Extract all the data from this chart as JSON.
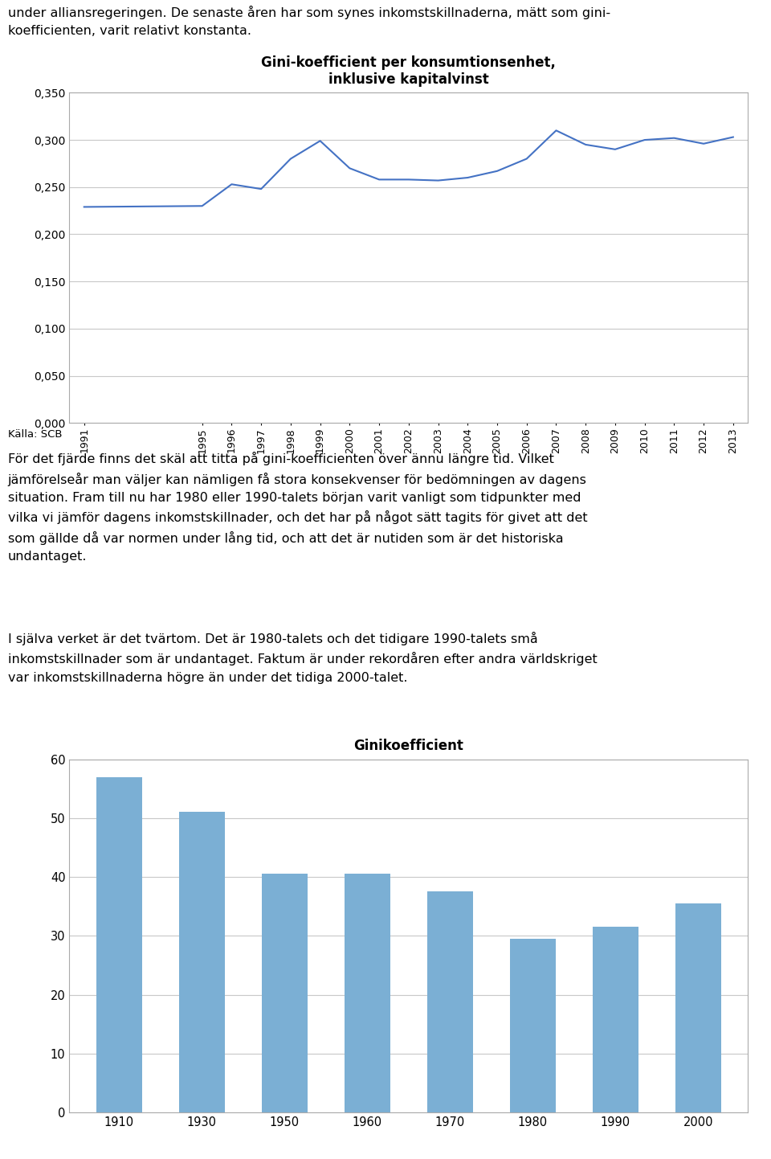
{
  "text_top": "under alliansregeringen. De senaste åren har som synes inkomstskillnaderna, mätt som gini-\nkoefficienten, varit relativt konstanta.",
  "chart1": {
    "title": "Gini-koefficient per konsumtionsenhet,\ninklusive kapitalvinst",
    "years": [
      1991,
      1995,
      1996,
      1997,
      1998,
      1999,
      2000,
      2001,
      2002,
      2003,
      2004,
      2005,
      2006,
      2007,
      2008,
      2009,
      2010,
      2011,
      2012,
      2013
    ],
    "values": [
      0.229,
      0.23,
      0.253,
      0.248,
      0.28,
      0.299,
      0.27,
      0.258,
      0.258,
      0.257,
      0.26,
      0.267,
      0.28,
      0.31,
      0.295,
      0.29,
      0.3,
      0.302,
      0.296,
      0.303
    ],
    "ylim": [
      0,
      0.35
    ],
    "yticks": [
      0.0,
      0.05,
      0.1,
      0.15,
      0.2,
      0.25,
      0.3,
      0.35
    ],
    "line_color": "#4472C4",
    "source": "Källa: SCB"
  },
  "text_middle_1": "För det fjärde finns det skäl att titta på gini-koefficienten över ännu längre tid. Vilket\njämförelseår man väljer kan nämligen få stora konsekvenser för bedömningen av dagens\nsituation. Fram till nu har 1980 eller 1990-talets början varit vanligt som tidpunkter med\nvilka vi jämför dagens inkomstskillnader, och det har på något sätt tagits för givet att det\nsom gällde då var normen under lång tid, och att det är nutiden som är det historiska\nundantaget.",
  "text_middle_2": "I själva verket är det tvärtom. Det är 1980-talets och det tidigare 1990-talets små\ninkomstskillnader som är undantaget. Faktum är under rekordåren efter andra världskriget\nvar inkomstskillnaderna högre än under det tidiga 2000-talet.",
  "chart2": {
    "title": "Ginikoefficient",
    "categories": [
      "1910",
      "1930",
      "1950",
      "1960",
      "1970",
      "1980",
      "1990",
      "2000"
    ],
    "values": [
      57.0,
      51.0,
      40.5,
      40.5,
      37.5,
      29.5,
      31.5,
      35.5
    ],
    "ylim": [
      0,
      60
    ],
    "yticks": [
      0,
      10,
      20,
      30,
      40,
      50,
      60
    ],
    "bar_color": "#7BAFD4"
  },
  "fig_width": 9.6,
  "fig_height": 14.42,
  "dpi": 100
}
